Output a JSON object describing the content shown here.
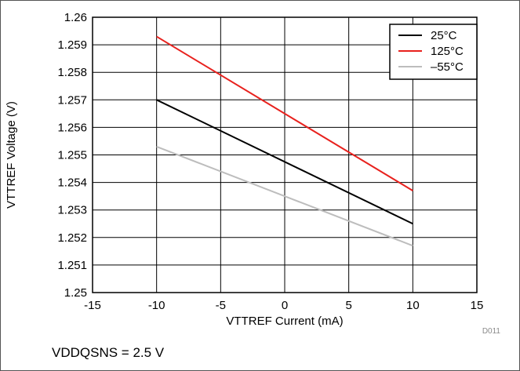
{
  "figure_id": "D011",
  "footnote": "VDDQSNS = 2.5 V",
  "colors": {
    "grid": "#000000",
    "plot_bg": "#ffffff"
  },
  "chart_data": {
    "type": "line",
    "title": "",
    "xlabel": "VTTREF Current (mA)",
    "ylabel": "VTTREF Voltage (V)",
    "xlim": [
      -15,
      15
    ],
    "ylim": [
      1.25,
      1.26
    ],
    "xticks": [
      -15,
      -10,
      -5,
      0,
      5,
      10,
      15
    ],
    "xtick_labels": [
      "-15",
      "-10",
      "-5",
      "0",
      "5",
      "10",
      "15"
    ],
    "yticks": [
      1.25,
      1.251,
      1.252,
      1.253,
      1.254,
      1.255,
      1.256,
      1.257,
      1.258,
      1.259,
      1.26
    ],
    "ytick_labels": [
      "1.25",
      "1.251",
      "1.252",
      "1.253",
      "1.254",
      "1.255",
      "1.256",
      "1.257",
      "1.258",
      "1.259",
      "1.26"
    ],
    "grid": true,
    "legend_position": "top-right",
    "series": [
      {
        "name": "25°C",
        "color": "#000000",
        "x": [
          -10,
          10
        ],
        "y": [
          1.257,
          1.2525
        ]
      },
      {
        "name": "125°C",
        "color": "#e8211d",
        "x": [
          -10,
          10
        ],
        "y": [
          1.2593,
          1.2537
        ]
      },
      {
        "name": "–55°C",
        "color": "#bdbdbd",
        "x": [
          -10,
          10
        ],
        "y": [
          1.2553,
          1.2517
        ]
      }
    ]
  }
}
